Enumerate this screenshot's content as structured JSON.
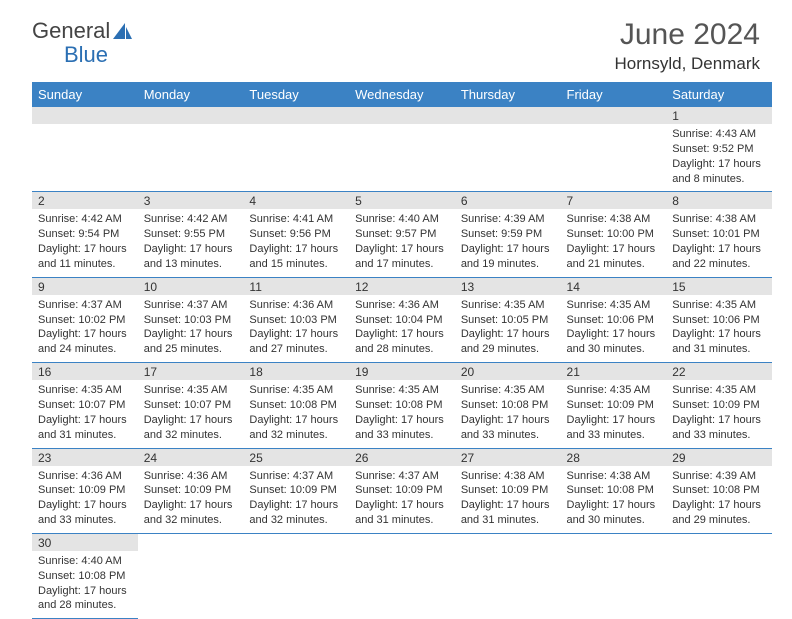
{
  "logo": {
    "text1": "General",
    "text2": "Blue",
    "color1": "#555555",
    "color2": "#2b6fb3"
  },
  "title": "June 2024",
  "location": "Hornsyld, Denmark",
  "headers": [
    "Sunday",
    "Monday",
    "Tuesday",
    "Wednesday",
    "Thursday",
    "Friday",
    "Saturday"
  ],
  "header_bg": "#3b82c4",
  "daynum_bg": "#e4e4e4",
  "cell_border": "#3b82c4",
  "weeks": [
    [
      null,
      null,
      null,
      null,
      null,
      null,
      {
        "d": "1",
        "sr": "Sunrise: 4:43 AM",
        "ss": "Sunset: 9:52 PM",
        "dl1": "Daylight: 17 hours",
        "dl2": "and 8 minutes."
      }
    ],
    [
      {
        "d": "2",
        "sr": "Sunrise: 4:42 AM",
        "ss": "Sunset: 9:54 PM",
        "dl1": "Daylight: 17 hours",
        "dl2": "and 11 minutes."
      },
      {
        "d": "3",
        "sr": "Sunrise: 4:42 AM",
        "ss": "Sunset: 9:55 PM",
        "dl1": "Daylight: 17 hours",
        "dl2": "and 13 minutes."
      },
      {
        "d": "4",
        "sr": "Sunrise: 4:41 AM",
        "ss": "Sunset: 9:56 PM",
        "dl1": "Daylight: 17 hours",
        "dl2": "and 15 minutes."
      },
      {
        "d": "5",
        "sr": "Sunrise: 4:40 AM",
        "ss": "Sunset: 9:57 PM",
        "dl1": "Daylight: 17 hours",
        "dl2": "and 17 minutes."
      },
      {
        "d": "6",
        "sr": "Sunrise: 4:39 AM",
        "ss": "Sunset: 9:59 PM",
        "dl1": "Daylight: 17 hours",
        "dl2": "and 19 minutes."
      },
      {
        "d": "7",
        "sr": "Sunrise: 4:38 AM",
        "ss": "Sunset: 10:00 PM",
        "dl1": "Daylight: 17 hours",
        "dl2": "and 21 minutes."
      },
      {
        "d": "8",
        "sr": "Sunrise: 4:38 AM",
        "ss": "Sunset: 10:01 PM",
        "dl1": "Daylight: 17 hours",
        "dl2": "and 22 minutes."
      }
    ],
    [
      {
        "d": "9",
        "sr": "Sunrise: 4:37 AM",
        "ss": "Sunset: 10:02 PM",
        "dl1": "Daylight: 17 hours",
        "dl2": "and 24 minutes."
      },
      {
        "d": "10",
        "sr": "Sunrise: 4:37 AM",
        "ss": "Sunset: 10:03 PM",
        "dl1": "Daylight: 17 hours",
        "dl2": "and 25 minutes."
      },
      {
        "d": "11",
        "sr": "Sunrise: 4:36 AM",
        "ss": "Sunset: 10:03 PM",
        "dl1": "Daylight: 17 hours",
        "dl2": "and 27 minutes."
      },
      {
        "d": "12",
        "sr": "Sunrise: 4:36 AM",
        "ss": "Sunset: 10:04 PM",
        "dl1": "Daylight: 17 hours",
        "dl2": "and 28 minutes."
      },
      {
        "d": "13",
        "sr": "Sunrise: 4:35 AM",
        "ss": "Sunset: 10:05 PM",
        "dl1": "Daylight: 17 hours",
        "dl2": "and 29 minutes."
      },
      {
        "d": "14",
        "sr": "Sunrise: 4:35 AM",
        "ss": "Sunset: 10:06 PM",
        "dl1": "Daylight: 17 hours",
        "dl2": "and 30 minutes."
      },
      {
        "d": "15",
        "sr": "Sunrise: 4:35 AM",
        "ss": "Sunset: 10:06 PM",
        "dl1": "Daylight: 17 hours",
        "dl2": "and 31 minutes."
      }
    ],
    [
      {
        "d": "16",
        "sr": "Sunrise: 4:35 AM",
        "ss": "Sunset: 10:07 PM",
        "dl1": "Daylight: 17 hours",
        "dl2": "and 31 minutes."
      },
      {
        "d": "17",
        "sr": "Sunrise: 4:35 AM",
        "ss": "Sunset: 10:07 PM",
        "dl1": "Daylight: 17 hours",
        "dl2": "and 32 minutes."
      },
      {
        "d": "18",
        "sr": "Sunrise: 4:35 AM",
        "ss": "Sunset: 10:08 PM",
        "dl1": "Daylight: 17 hours",
        "dl2": "and 32 minutes."
      },
      {
        "d": "19",
        "sr": "Sunrise: 4:35 AM",
        "ss": "Sunset: 10:08 PM",
        "dl1": "Daylight: 17 hours",
        "dl2": "and 33 minutes."
      },
      {
        "d": "20",
        "sr": "Sunrise: 4:35 AM",
        "ss": "Sunset: 10:08 PM",
        "dl1": "Daylight: 17 hours",
        "dl2": "and 33 minutes."
      },
      {
        "d": "21",
        "sr": "Sunrise: 4:35 AM",
        "ss": "Sunset: 10:09 PM",
        "dl1": "Daylight: 17 hours",
        "dl2": "and 33 minutes."
      },
      {
        "d": "22",
        "sr": "Sunrise: 4:35 AM",
        "ss": "Sunset: 10:09 PM",
        "dl1": "Daylight: 17 hours",
        "dl2": "and 33 minutes."
      }
    ],
    [
      {
        "d": "23",
        "sr": "Sunrise: 4:36 AM",
        "ss": "Sunset: 10:09 PM",
        "dl1": "Daylight: 17 hours",
        "dl2": "and 33 minutes."
      },
      {
        "d": "24",
        "sr": "Sunrise: 4:36 AM",
        "ss": "Sunset: 10:09 PM",
        "dl1": "Daylight: 17 hours",
        "dl2": "and 32 minutes."
      },
      {
        "d": "25",
        "sr": "Sunrise: 4:37 AM",
        "ss": "Sunset: 10:09 PM",
        "dl1": "Daylight: 17 hours",
        "dl2": "and 32 minutes."
      },
      {
        "d": "26",
        "sr": "Sunrise: 4:37 AM",
        "ss": "Sunset: 10:09 PM",
        "dl1": "Daylight: 17 hours",
        "dl2": "and 31 minutes."
      },
      {
        "d": "27",
        "sr": "Sunrise: 4:38 AM",
        "ss": "Sunset: 10:09 PM",
        "dl1": "Daylight: 17 hours",
        "dl2": "and 31 minutes."
      },
      {
        "d": "28",
        "sr": "Sunrise: 4:38 AM",
        "ss": "Sunset: 10:08 PM",
        "dl1": "Daylight: 17 hours",
        "dl2": "and 30 minutes."
      },
      {
        "d": "29",
        "sr": "Sunrise: 4:39 AM",
        "ss": "Sunset: 10:08 PM",
        "dl1": "Daylight: 17 hours",
        "dl2": "and 29 minutes."
      }
    ],
    [
      {
        "d": "30",
        "sr": "Sunrise: 4:40 AM",
        "ss": "Sunset: 10:08 PM",
        "dl1": "Daylight: 17 hours",
        "dl2": "and 28 minutes."
      },
      null,
      null,
      null,
      null,
      null,
      null
    ]
  ]
}
